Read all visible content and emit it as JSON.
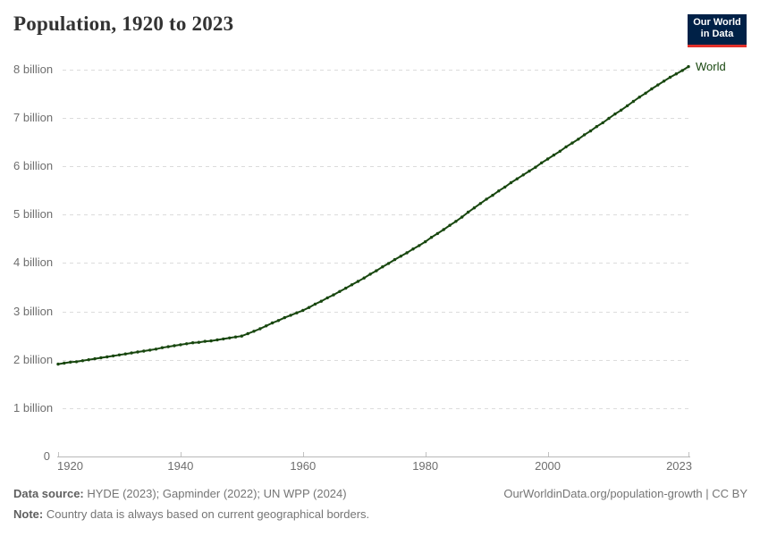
{
  "header": {
    "title": "Population, 1920 to 2023",
    "logo": {
      "line1": "Our World",
      "line2": "in Data",
      "bg_color": "#002147",
      "accent_color": "#E2302B",
      "text_color": "#ffffff"
    }
  },
  "chart_data": {
    "type": "line",
    "title": "Population, 1920 to 2023",
    "xlabel": "",
    "ylabel": "",
    "xlim": [
      1920,
      2023
    ],
    "ylim": [
      0,
      8.35
    ],
    "grid": "horizontal-dashed",
    "legend_position": "end-of-line-label",
    "x_ticks": [
      1920,
      1940,
      1960,
      1980,
      2000,
      2023
    ],
    "y_ticks": [
      {
        "value": 0,
        "label": "0"
      },
      {
        "value": 1,
        "label": "1 billion"
      },
      {
        "value": 2,
        "label": "2 billion"
      },
      {
        "value": 3,
        "label": "3 billion"
      },
      {
        "value": 4,
        "label": "4 billion"
      },
      {
        "value": 5,
        "label": "5 billion"
      },
      {
        "value": 6,
        "label": "6 billion"
      },
      {
        "value": 7,
        "label": "7 billion"
      },
      {
        "value": 8,
        "label": "8 billion"
      }
    ],
    "unit": "billion people",
    "series": [
      {
        "name": "World",
        "color": "#18470F",
        "points": [
          [
            1920,
            1.91
          ],
          [
            1921,
            1.93
          ],
          [
            1922,
            1.95
          ],
          [
            1923,
            1.96
          ],
          [
            1924,
            1.98
          ],
          [
            1925,
            2.0
          ],
          [
            1926,
            2.02
          ],
          [
            1927,
            2.04
          ],
          [
            1928,
            2.06
          ],
          [
            1929,
            2.08
          ],
          [
            1930,
            2.1
          ],
          [
            1931,
            2.12
          ],
          [
            1932,
            2.14
          ],
          [
            1933,
            2.16
          ],
          [
            1934,
            2.18
          ],
          [
            1935,
            2.2
          ],
          [
            1936,
            2.22
          ],
          [
            1937,
            2.25
          ],
          [
            1938,
            2.27
          ],
          [
            1939,
            2.29
          ],
          [
            1940,
            2.31
          ],
          [
            1941,
            2.33
          ],
          [
            1942,
            2.35
          ],
          [
            1943,
            2.36
          ],
          [
            1944,
            2.38
          ],
          [
            1945,
            2.39
          ],
          [
            1946,
            2.41
          ],
          [
            1947,
            2.43
          ],
          [
            1948,
            2.45
          ],
          [
            1949,
            2.47
          ],
          [
            1950,
            2.49
          ],
          [
            1951,
            2.54
          ],
          [
            1952,
            2.59
          ],
          [
            1953,
            2.64
          ],
          [
            1954,
            2.7
          ],
          [
            1955,
            2.76
          ],
          [
            1956,
            2.81
          ],
          [
            1957,
            2.87
          ],
          [
            1958,
            2.92
          ],
          [
            1959,
            2.97
          ],
          [
            1960,
            3.02
          ],
          [
            1961,
            3.08
          ],
          [
            1962,
            3.15
          ],
          [
            1963,
            3.21
          ],
          [
            1964,
            3.28
          ],
          [
            1965,
            3.34
          ],
          [
            1966,
            3.41
          ],
          [
            1967,
            3.48
          ],
          [
            1968,
            3.55
          ],
          [
            1969,
            3.62
          ],
          [
            1970,
            3.69
          ],
          [
            1971,
            3.77
          ],
          [
            1972,
            3.84
          ],
          [
            1973,
            3.92
          ],
          [
            1974,
            3.99
          ],
          [
            1975,
            4.07
          ],
          [
            1976,
            4.14
          ],
          [
            1977,
            4.21
          ],
          [
            1978,
            4.29
          ],
          [
            1979,
            4.36
          ],
          [
            1980,
            4.44
          ],
          [
            1981,
            4.53
          ],
          [
            1982,
            4.61
          ],
          [
            1983,
            4.69
          ],
          [
            1984,
            4.78
          ],
          [
            1985,
            4.86
          ],
          [
            1986,
            4.95
          ],
          [
            1987,
            5.05
          ],
          [
            1988,
            5.14
          ],
          [
            1989,
            5.23
          ],
          [
            1990,
            5.32
          ],
          [
            1991,
            5.4
          ],
          [
            1992,
            5.49
          ],
          [
            1993,
            5.57
          ],
          [
            1994,
            5.66
          ],
          [
            1995,
            5.74
          ],
          [
            1996,
            5.82
          ],
          [
            1997,
            5.9
          ],
          [
            1998,
            5.98
          ],
          [
            1999,
            6.07
          ],
          [
            2000,
            6.15
          ],
          [
            2001,
            6.23
          ],
          [
            2002,
            6.31
          ],
          [
            2003,
            6.4
          ],
          [
            2004,
            6.48
          ],
          [
            2005,
            6.56
          ],
          [
            2006,
            6.65
          ],
          [
            2007,
            6.73
          ],
          [
            2008,
            6.82
          ],
          [
            2009,
            6.9
          ],
          [
            2010,
            6.99
          ],
          [
            2011,
            7.08
          ],
          [
            2012,
            7.16
          ],
          [
            2013,
            7.25
          ],
          [
            2014,
            7.34
          ],
          [
            2015,
            7.43
          ],
          [
            2016,
            7.51
          ],
          [
            2017,
            7.6
          ],
          [
            2018,
            7.68
          ],
          [
            2019,
            7.76
          ],
          [
            2020,
            7.84
          ],
          [
            2021,
            7.91
          ],
          [
            2022,
            7.98
          ],
          [
            2023,
            8.06
          ]
        ]
      }
    ]
  },
  "footer": {
    "data_source_label": "Data source:",
    "data_source_text": "HYDE (2023); Gapminder (2022); UN WPP (2024)",
    "note_label": "Note:",
    "note_text": "Country data is always based on current geographical borders.",
    "link_text": "OurWorldinData.org/population-growth | CC BY"
  }
}
